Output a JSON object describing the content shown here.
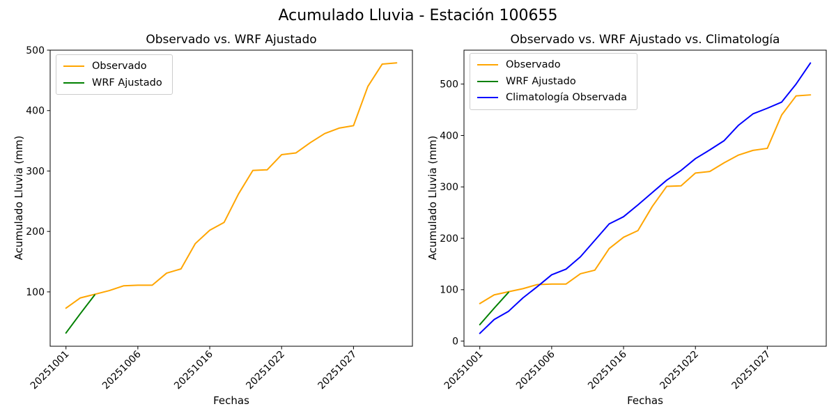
{
  "figure": {
    "title": "Acumulado Lluvia - Estación 100655"
  },
  "chart_data": [
    {
      "type": "line",
      "title": "Observado vs. WRF Ajustado",
      "xlabel": "Fechas",
      "ylabel": "Acumulado Lluvia (mm)",
      "x_tick_labels": [
        "20251001",
        "20251006",
        "20251016",
        "20251022",
        "20251027"
      ],
      "x_tick_positions": [
        0,
        5,
        10,
        15,
        20
      ],
      "n_points": 24,
      "y_ticks": [
        100,
        200,
        300,
        400,
        500
      ],
      "ylim": [
        10,
        500
      ],
      "grid": false,
      "legend_position": "upper left",
      "series": [
        {
          "name": "Observado",
          "color": "#FFA500",
          "values": [
            73,
            90,
            96,
            102,
            110,
            111,
            111,
            131,
            138,
            180,
            202,
            215,
            262,
            301,
            302,
            327,
            330,
            347,
            362,
            371,
            375,
            440,
            477,
            479
          ]
        },
        {
          "name": "WRF Ajustado",
          "color": "#008000",
          "values": [
            32,
            64,
            95
          ]
        }
      ]
    },
    {
      "type": "line",
      "title": "Observado vs. WRF Ajustado vs. Climatología",
      "xlabel": "Fechas",
      "ylabel": "Acumulado Lluvia (mm)",
      "x_tick_labels": [
        "20251001",
        "20251006",
        "20251016",
        "20251022",
        "20251027"
      ],
      "x_tick_positions": [
        0,
        5,
        10,
        15,
        20
      ],
      "n_points": 24,
      "y_ticks": [
        0,
        100,
        200,
        300,
        400,
        500
      ],
      "ylim": [
        -10,
        566
      ],
      "grid": false,
      "legend_position": "upper left",
      "series": [
        {
          "name": "Observado",
          "color": "#FFA500",
          "values": [
            73,
            90,
            96,
            102,
            110,
            111,
            111,
            131,
            138,
            180,
            202,
            215,
            262,
            301,
            302,
            327,
            330,
            347,
            362,
            371,
            375,
            440,
            477,
            479
          ]
        },
        {
          "name": "WRF Ajustado",
          "color": "#008000",
          "values": [
            32,
            64,
            95
          ]
        },
        {
          "name": "Climatología Observada",
          "color": "#0000FF",
          "values": [
            15,
            42,
            58,
            84,
            106,
            129,
            140,
            164,
            196,
            228,
            242,
            265,
            289,
            313,
            332,
            355,
            372,
            390,
            420,
            442,
            453,
            465,
            500,
            541
          ]
        }
      ]
    }
  ]
}
